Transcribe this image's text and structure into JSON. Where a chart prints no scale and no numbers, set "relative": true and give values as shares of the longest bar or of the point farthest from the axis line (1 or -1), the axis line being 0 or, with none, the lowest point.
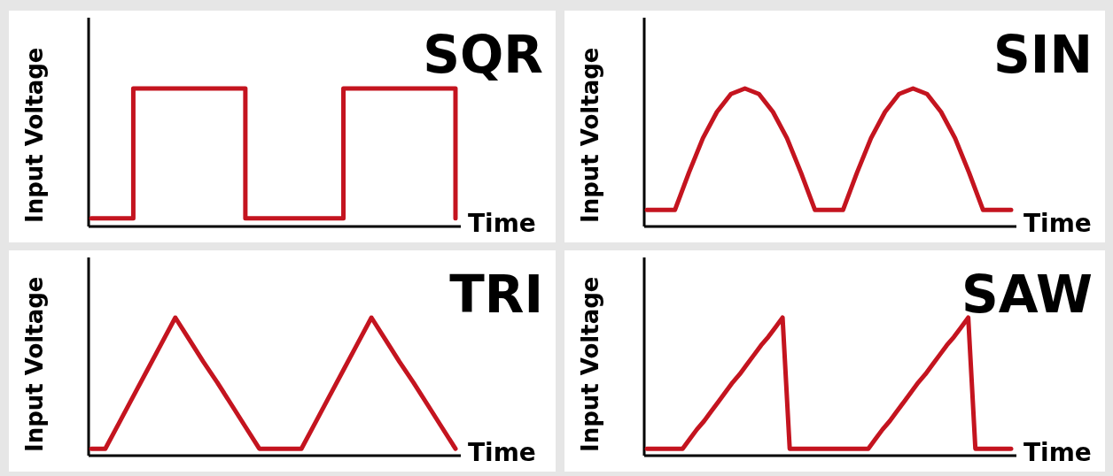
{
  "chart_data": [
    {
      "type": "step",
      "title": "SQR",
      "xlabel": "Time",
      "ylabel": "Input Voltage",
      "relative": true,
      "color": "#c4141f",
      "categories": [
        null,
        null,
        null,
        null,
        null,
        null,
        null,
        null,
        null,
        null,
        null,
        null,
        null,
        null,
        null,
        null,
        null,
        null,
        null,
        null,
        null,
        null,
        null,
        null,
        null,
        null,
        null
      ],
      "values": [
        0.06,
        0.06,
        0.06,
        1,
        1,
        1,
        1,
        1,
        1,
        1,
        1,
        0.06,
        0.06,
        0.06,
        0.06,
        0.06,
        0.06,
        0.06,
        1,
        1,
        1,
        1,
        1,
        1,
        1,
        1,
        0.06
      ]
    },
    {
      "type": "line",
      "title": "SIN",
      "xlabel": "Time",
      "ylabel": "Input Voltage",
      "relative": true,
      "color": "#c4141f",
      "categories": [
        null,
        null,
        null,
        null,
        null,
        null,
        null,
        null,
        null,
        null,
        null,
        null,
        null,
        null,
        null,
        null,
        null,
        null,
        null,
        null,
        null,
        null,
        null,
        null,
        null,
        null,
        null
      ],
      "values": [
        0.12,
        0.12,
        0.12,
        0.39,
        0.64,
        0.83,
        0.96,
        1,
        0.96,
        0.83,
        0.64,
        0.39,
        0.12,
        0.12,
        0.12,
        0.39,
        0.64,
        0.83,
        0.96,
        1,
        0.96,
        0.83,
        0.64,
        0.39,
        0.12,
        0.12,
        0.12
      ]
    },
    {
      "type": "line",
      "title": "TRI",
      "xlabel": "Time",
      "ylabel": "Input Voltage",
      "relative": true,
      "color": "#c4141f",
      "categories": [
        null,
        null,
        null,
        null,
        null,
        null,
        null,
        null,
        null,
        null,
        null,
        null,
        null,
        null,
        null,
        null,
        null,
        null,
        null,
        null,
        null,
        null,
        null,
        null,
        null,
        null,
        null
      ],
      "values": [
        0.05,
        0.05,
        0.24,
        0.43,
        0.62,
        0.81,
        1,
        0.84,
        0.68,
        0.53,
        0.37,
        0.21,
        0.05,
        0.05,
        0.05,
        0.05,
        0.24,
        0.43,
        0.62,
        0.81,
        1,
        0.84,
        0.68,
        0.53,
        0.37,
        0.21,
        0.05
      ]
    },
    {
      "type": "line",
      "title": "SAW",
      "xlabel": "Time",
      "ylabel": "Input Voltage",
      "relative": true,
      "color": "#c4141f",
      "categories": [
        null,
        null,
        null,
        null,
        null,
        null,
        null,
        null,
        null,
        null,
        null,
        null,
        null,
        null,
        null,
        null,
        null,
        null,
        null,
        null,
        null,
        null,
        null,
        null,
        null,
        null,
        null,
        null,
        null,
        null,
        null,
        null,
        null,
        null,
        null,
        null,
        null,
        null,
        null,
        null,
        null,
        null,
        null,
        null,
        null,
        null,
        null,
        null,
        null,
        null,
        null,
        null
      ],
      "values": [
        0.05,
        0.05,
        0.05,
        0.05,
        0.05,
        0.05,
        0.12,
        0.19,
        0.25,
        0.32,
        0.39,
        0.46,
        0.53,
        0.59,
        0.66,
        0.73,
        0.8,
        0.86,
        0.93,
        1,
        0.05,
        0.05,
        0.05,
        0.05,
        0.05,
        0.05,
        0.05,
        0.05,
        0.05,
        0.05,
        0.05,
        0.05,
        0.12,
        0.19,
        0.25,
        0.32,
        0.39,
        0.46,
        0.53,
        0.59,
        0.66,
        0.73,
        0.8,
        0.86,
        0.93,
        1,
        0.05,
        0.05,
        0.05,
        0.05,
        0.05,
        0.05
      ]
    }
  ]
}
